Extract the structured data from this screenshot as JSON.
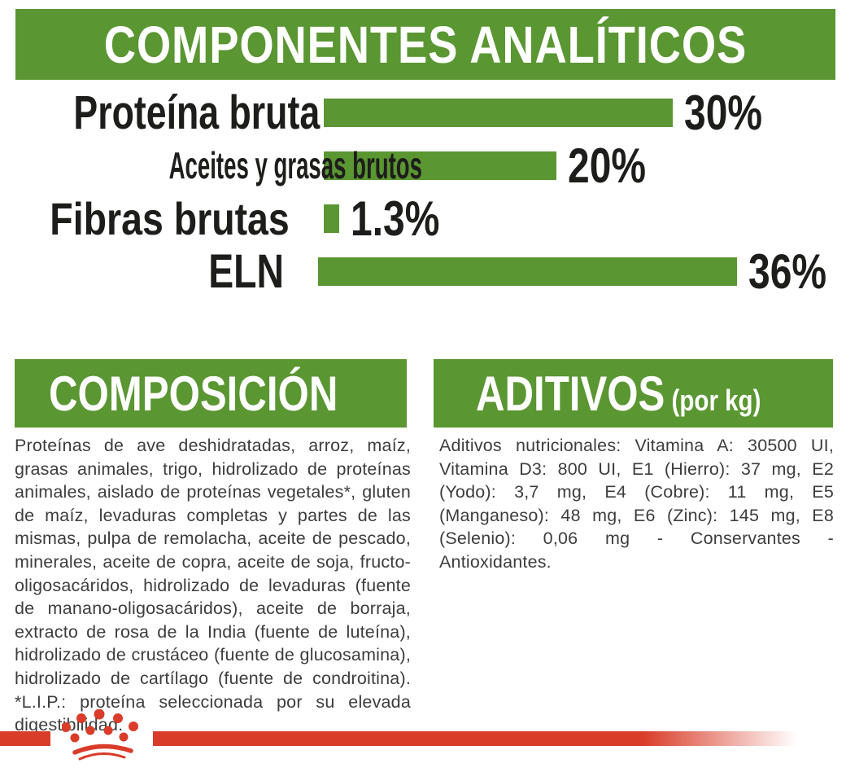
{
  "colors": {
    "green": "#5a9632",
    "red": "#d93c28",
    "heading_text": "#ffffff",
    "label_text": "#1d1d1b",
    "body_text": "#3d3d3c"
  },
  "chart_data": {
    "type": "bar",
    "orientation": "horizontal",
    "title": "COMPONENTES ANALÍTICOS",
    "categories": [
      "Proteína bruta",
      "Aceites y grasas brutos",
      "Fibras brutas",
      "ELN"
    ],
    "values": [
      30,
      20,
      1.3,
      36
    ],
    "value_labels": [
      "30%",
      "20%",
      "1.3%",
      "36%"
    ],
    "unit": "%",
    "bar_color": "#5a9632",
    "xlim": [
      0,
      40
    ],
    "grid": false,
    "legend": false
  },
  "composition": {
    "title": "COMPOSICIÓN",
    "body": "Proteínas de ave deshidratadas, arroz, maíz, grasas animales, trigo, hidrolizado de proteínas animales, aislado de proteínas vegetales*, gluten de maíz, levaduras completas y partes de las mismas, pulpa de remolacha, aceite de pescado, minerales, aceite de copra, aceite de soja, fructo-oligosacáridos, hidrolizado de levaduras (fuente de manano-oligosacáridos), aceite de borraja, extracto de rosa de la India (fuente de luteína), hidrolizado de crustáceo (fuente de glucosamina), hidrolizado de cartílago (fuente de condroitina). *L.I.P.: proteína seleccionada por su elevada digestibilidad."
  },
  "additives": {
    "title": "ADITIVOS",
    "unit": "(por kg)",
    "body": "Aditivos nutricionales: Vitamina A: 30500 UI, Vitamina D3: 800 UI, E1 (Hierro): 37 mg, E2 (Yodo): 3,7 mg, E4 (Cobre): 11 mg, E5 (Manganeso): 48 mg, E6 (Zinc): 145 mg, E8 (Selenio): 0,06 mg - Conservantes - Antioxidantes."
  },
  "footer": {
    "logo": "royal-canin-crown"
  }
}
